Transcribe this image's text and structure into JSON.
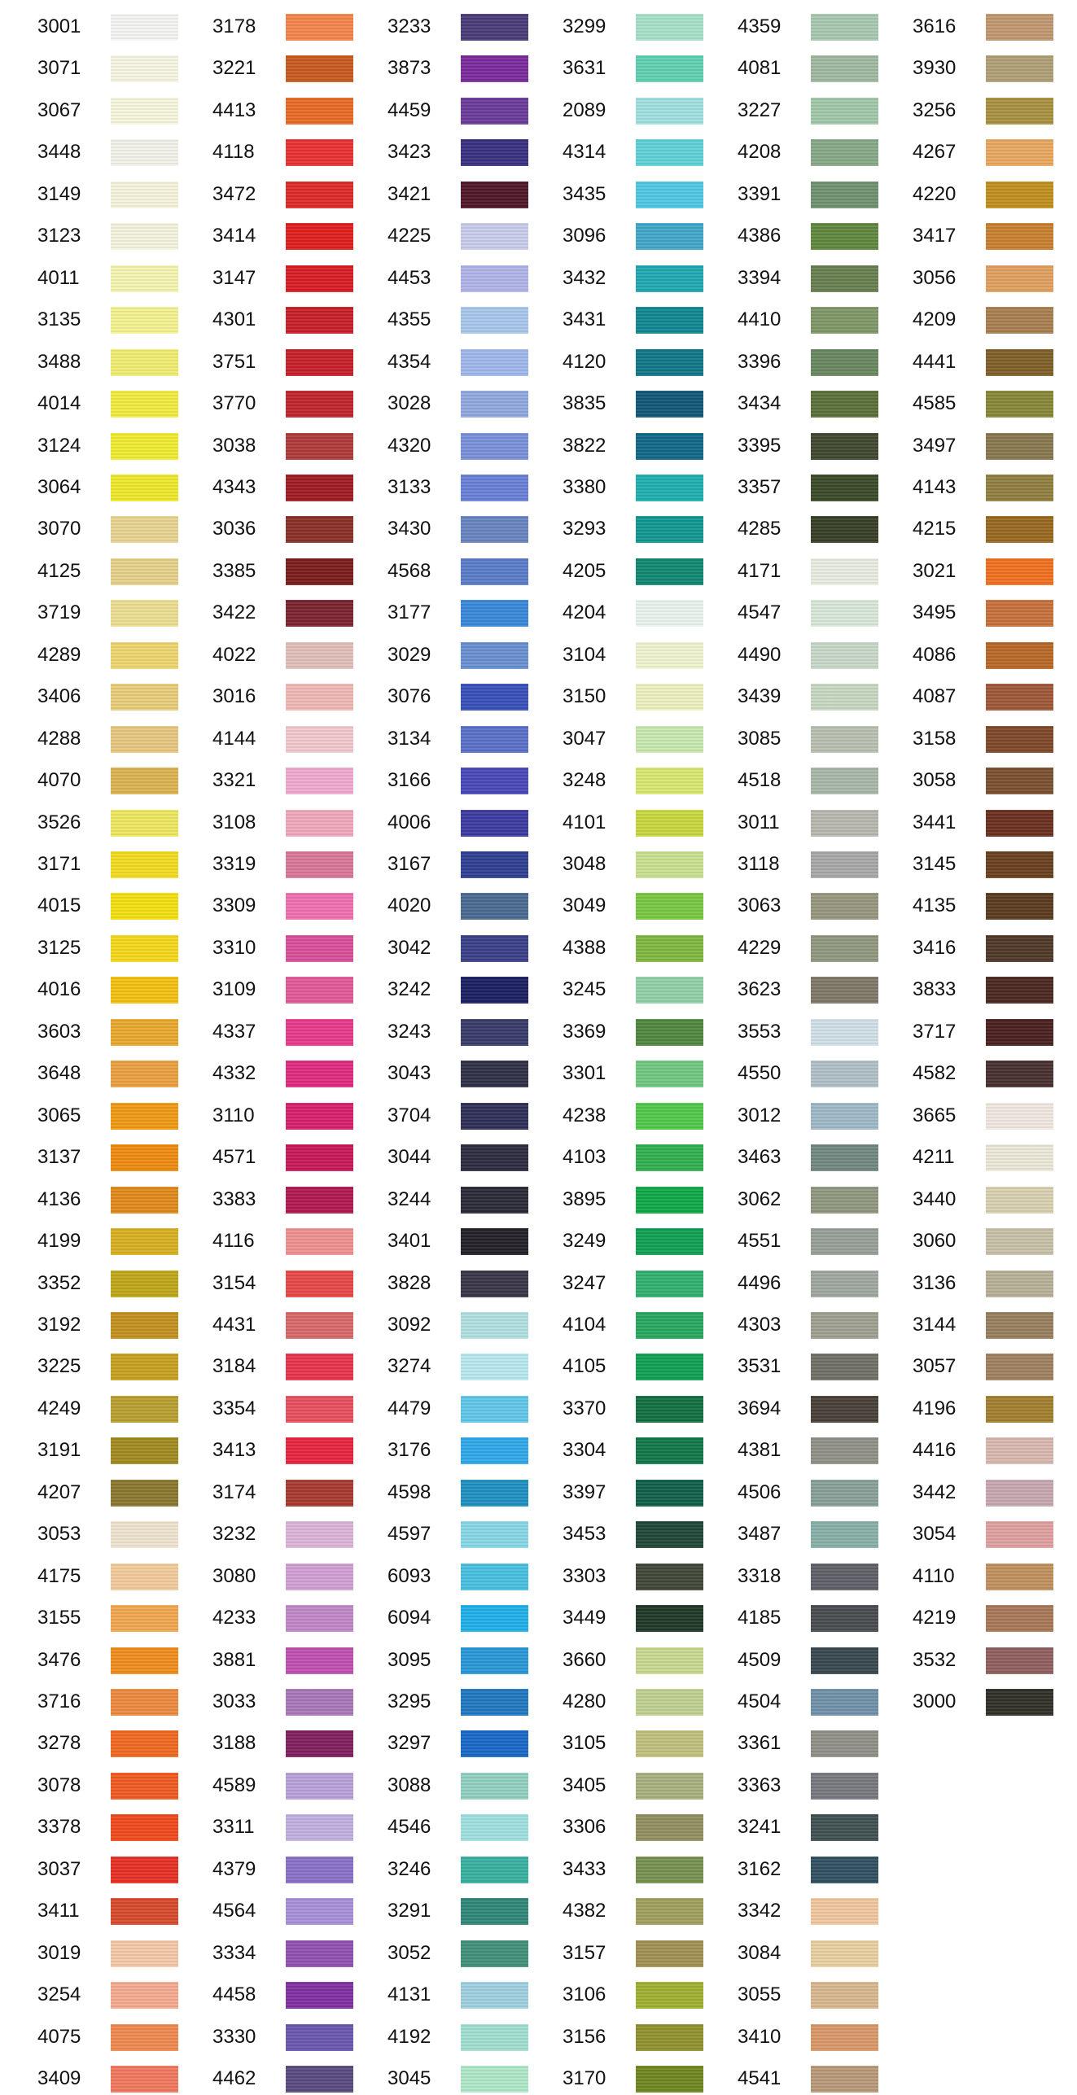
{
  "columns": [
    [
      {
        "code": "3001",
        "color": "#f4f4f2"
      },
      {
        "code": "3071",
        "color": "#f6f4e2"
      },
      {
        "code": "3067",
        "color": "#f7f5dc"
      },
      {
        "code": "3448",
        "color": "#f2f2ea"
      },
      {
        "code": "3149",
        "color": "#f5f3dc"
      },
      {
        "code": "3123",
        "color": "#f4f3de"
      },
      {
        "code": "4011",
        "color": "#f4f4b0"
      },
      {
        "code": "3135",
        "color": "#f3f290"
      },
      {
        "code": "3488",
        "color": "#f0ee70"
      },
      {
        "code": "4014",
        "color": "#f2ec40"
      },
      {
        "code": "3124",
        "color": "#f0ec30"
      },
      {
        "code": "3064",
        "color": "#efe82a"
      },
      {
        "code": "3070",
        "color": "#e7d490"
      },
      {
        "code": "4125",
        "color": "#e6d08a"
      },
      {
        "code": "3719",
        "color": "#ecde90"
      },
      {
        "code": "4289",
        "color": "#eed670"
      },
      {
        "code": "3406",
        "color": "#e8cc78"
      },
      {
        "code": "4288",
        "color": "#e8c880"
      },
      {
        "code": "4070",
        "color": "#dcb450"
      },
      {
        "code": "3526",
        "color": "#eee860"
      },
      {
        "code": "3171",
        "color": "#f2dc20"
      },
      {
        "code": "4015",
        "color": "#f3e010"
      },
      {
        "code": "3125",
        "color": "#f4d81a"
      },
      {
        "code": "4016",
        "color": "#f2c010"
      },
      {
        "code": "3603",
        "color": "#e8a82c"
      },
      {
        "code": "3648",
        "color": "#eba040"
      },
      {
        "code": "3065",
        "color": "#f09a14"
      },
      {
        "code": "3137",
        "color": "#ee8a10"
      },
      {
        "code": "4136",
        "color": "#e08a1c"
      },
      {
        "code": "4199",
        "color": "#d8b020"
      },
      {
        "code": "3352",
        "color": "#c0a818"
      },
      {
        "code": "3192",
        "color": "#c49020"
      },
      {
        "code": "3225",
        "color": "#c8a020"
      },
      {
        "code": "4249",
        "color": "#b8a030"
      },
      {
        "code": "3191",
        "color": "#a08a20"
      },
      {
        "code": "4207",
        "color": "#8a7830"
      },
      {
        "code": "3053",
        "color": "#f0e4d0"
      },
      {
        "code": "4175",
        "color": "#f2cc9c"
      },
      {
        "code": "3155",
        "color": "#f0a850"
      },
      {
        "code": "3476",
        "color": "#f08c1c"
      },
      {
        "code": "3716",
        "color": "#ec8a40"
      },
      {
        "code": "3278",
        "color": "#f06820"
      },
      {
        "code": "3078",
        "color": "#f05a20"
      },
      {
        "code": "3378",
        "color": "#f04a1c"
      },
      {
        "code": "3037",
        "color": "#e63024"
      },
      {
        "code": "3411",
        "color": "#d84a2c"
      },
      {
        "code": "3019",
        "color": "#f4c8a8"
      },
      {
        "code": "3254",
        "color": "#f4aa90"
      },
      {
        "code": "4075",
        "color": "#f08a50"
      },
      {
        "code": "3409",
        "color": "#f07860"
      }
    ],
    [
      {
        "code": "3178",
        "color": "#f4844a"
      },
      {
        "code": "3221",
        "color": "#c85a20"
      },
      {
        "code": "4413",
        "color": "#e86a24"
      },
      {
        "code": "4118",
        "color": "#e83232"
      },
      {
        "code": "3472",
        "color": "#e02828"
      },
      {
        "code": "3414",
        "color": "#e01e1e"
      },
      {
        "code": "3147",
        "color": "#d81c24"
      },
      {
        "code": "4301",
        "color": "#c81e28"
      },
      {
        "code": "3751",
        "color": "#c82028"
      },
      {
        "code": "3770",
        "color": "#c0242c"
      },
      {
        "code": "3038",
        "color": "#b03a3a"
      },
      {
        "code": "4343",
        "color": "#a01c24"
      },
      {
        "code": "3036",
        "color": "#8a3028"
      },
      {
        "code": "3385",
        "color": "#7a1c1c"
      },
      {
        "code": "3422",
        "color": "#7a2430"
      },
      {
        "code": "4022",
        "color": "#e0c0b8"
      },
      {
        "code": "3016",
        "color": "#f0b8b4"
      },
      {
        "code": "4144",
        "color": "#f0c8cc"
      },
      {
        "code": "3321",
        "color": "#f0aad0"
      },
      {
        "code": "3108",
        "color": "#f0a8bc"
      },
      {
        "code": "3319",
        "color": "#d87898"
      },
      {
        "code": "3309",
        "color": "#f070b0"
      },
      {
        "code": "3310",
        "color": "#d8509a"
      },
      {
        "code": "3109",
        "color": "#e05a98"
      },
      {
        "code": "4337",
        "color": "#e83a8c"
      },
      {
        "code": "4332",
        "color": "#e02a80"
      },
      {
        "code": "3110",
        "color": "#d8206c"
      },
      {
        "code": "4571",
        "color": "#c81858"
      },
      {
        "code": "3383",
        "color": "#b01850"
      },
      {
        "code": "4116",
        "color": "#f09090"
      },
      {
        "code": "3154",
        "color": "#e84848"
      },
      {
        "code": "4431",
        "color": "#d86868"
      },
      {
        "code": "3184",
        "color": "#e8344c"
      },
      {
        "code": "3354",
        "color": "#e85060"
      },
      {
        "code": "3413",
        "color": "#e82440"
      },
      {
        "code": "3174",
        "color": "#a83a30"
      },
      {
        "code": "3232",
        "color": "#dcb4d8"
      },
      {
        "code": "3080",
        "color": "#d0a0d4"
      },
      {
        "code": "4233",
        "color": "#c088c8"
      },
      {
        "code": "3881",
        "color": "#c050b0"
      },
      {
        "code": "3033",
        "color": "#a878b8"
      },
      {
        "code": "3188",
        "color": "#802060"
      },
      {
        "code": "4589",
        "color": "#b8a0d8"
      },
      {
        "code": "3311",
        "color": "#c0b0e0"
      },
      {
        "code": "4379",
        "color": "#8a70c8"
      },
      {
        "code": "4564",
        "color": "#a890d8"
      },
      {
        "code": "3334",
        "color": "#9050b0"
      },
      {
        "code": "4458",
        "color": "#8030a0"
      },
      {
        "code": "3330",
        "color": "#6a58b0"
      },
      {
        "code": "4462",
        "color": "#5a4a80"
      }
    ],
    [
      {
        "code": "3233",
        "color": "#4a3c78"
      },
      {
        "code": "3873",
        "color": "#7a2a9a"
      },
      {
        "code": "4459",
        "color": "#6a3a9a"
      },
      {
        "code": "3423",
        "color": "#383080"
      },
      {
        "code": "3421",
        "color": "#501828"
      },
      {
        "code": "4225",
        "color": "#c8ccea"
      },
      {
        "code": "4453",
        "color": "#b0b4e8"
      },
      {
        "code": "4355",
        "color": "#a8c8ec"
      },
      {
        "code": "4354",
        "color": "#a0b8ec"
      },
      {
        "code": "3028",
        "color": "#90a8e0"
      },
      {
        "code": "4320",
        "color": "#7890d8"
      },
      {
        "code": "3133",
        "color": "#6a80d8"
      },
      {
        "code": "3430",
        "color": "#6884c0"
      },
      {
        "code": "4568",
        "color": "#5a7cc8"
      },
      {
        "code": "3177",
        "color": "#3a88d8"
      },
      {
        "code": "3029",
        "color": "#6890d0"
      },
      {
        "code": "3076",
        "color": "#3850b8"
      },
      {
        "code": "3134",
        "color": "#5a70c8"
      },
      {
        "code": "3166",
        "color": "#4848b8"
      },
      {
        "code": "4006",
        "color": "#3c3ca0"
      },
      {
        "code": "3167",
        "color": "#304090"
      },
      {
        "code": "4020",
        "color": "#4a6a90"
      },
      {
        "code": "3042",
        "color": "#3a4088"
      },
      {
        "code": "3242",
        "color": "#1c2060"
      },
      {
        "code": "3243",
        "color": "#383c68"
      },
      {
        "code": "3043",
        "color": "#303048"
      },
      {
        "code": "3704",
        "color": "#303058"
      },
      {
        "code": "3044",
        "color": "#2c2c40"
      },
      {
        "code": "3244",
        "color": "#2a2a38"
      },
      {
        "code": "3401",
        "color": "#242028"
      },
      {
        "code": "3828",
        "color": "#3a3448"
      },
      {
        "code": "3092",
        "color": "#b0e0e0"
      },
      {
        "code": "3274",
        "color": "#b8e8f0"
      },
      {
        "code": "4479",
        "color": "#60c8e8"
      },
      {
        "code": "3176",
        "color": "#30a8e8"
      },
      {
        "code": "4598",
        "color": "#2090c0"
      },
      {
        "code": "4597",
        "color": "#88d8e8"
      },
      {
        "code": "6093",
        "color": "#48c0e0"
      },
      {
        "code": "6094",
        "color": "#20b0e8"
      },
      {
        "code": "3095",
        "color": "#2898d8"
      },
      {
        "code": "3295",
        "color": "#2078c0"
      },
      {
        "code": "3297",
        "color": "#1868c8"
      },
      {
        "code": "3088",
        "color": "#90d0c0"
      },
      {
        "code": "4546",
        "color": "#a0e0e0"
      },
      {
        "code": "3246",
        "color": "#38b0a0"
      },
      {
        "code": "3291",
        "color": "#308878"
      },
      {
        "code": "3052",
        "color": "#40907a"
      },
      {
        "code": "4131",
        "color": "#a0d0e0"
      },
      {
        "code": "4192",
        "color": "#a0e0d0"
      },
      {
        "code": "3045",
        "color": "#b0e8c8"
      }
    ],
    [
      {
        "code": "3299",
        "color": "#a8e0c8"
      },
      {
        "code": "3631",
        "color": "#60d0b0"
      },
      {
        "code": "2089",
        "color": "#a0e0e0"
      },
      {
        "code": "4314",
        "color": "#60d0d8"
      },
      {
        "code": "3435",
        "color": "#50c8e0"
      },
      {
        "code": "3096",
        "color": "#40a8c8"
      },
      {
        "code": "3432",
        "color": "#20a8b0"
      },
      {
        "code": "3431",
        "color": "#108890"
      },
      {
        "code": "4120",
        "color": "#107888"
      },
      {
        "code": "3835",
        "color": "#105878"
      },
      {
        "code": "3822",
        "color": "#106888"
      },
      {
        "code": "3380",
        "color": "#20b0b0"
      },
      {
        "code": "3293",
        "color": "#109890"
      },
      {
        "code": "4205",
        "color": "#108870"
      },
      {
        "code": "4204",
        "color": "#e8f4ee"
      },
      {
        "code": "3104",
        "color": "#f0f4d0"
      },
      {
        "code": "3150",
        "color": "#ecf0c0"
      },
      {
        "code": "3047",
        "color": "#c8e8b0"
      },
      {
        "code": "3248",
        "color": "#d8e870"
      },
      {
        "code": "4101",
        "color": "#c8d840"
      },
      {
        "code": "3048",
        "color": "#c8e090"
      },
      {
        "code": "3049",
        "color": "#78c840"
      },
      {
        "code": "4388",
        "color": "#80b840"
      },
      {
        "code": "3245",
        "color": "#90d0a8"
      },
      {
        "code": "3369",
        "color": "#508840"
      },
      {
        "code": "3301",
        "color": "#70c880"
      },
      {
        "code": "4238",
        "color": "#50c848"
      },
      {
        "code": "4103",
        "color": "#30b050"
      },
      {
        "code": "3895",
        "color": "#10a848"
      },
      {
        "code": "3249",
        "color": "#10a050"
      },
      {
        "code": "3247",
        "color": "#30b070"
      },
      {
        "code": "4104",
        "color": "#28a860"
      },
      {
        "code": "4105",
        "color": "#10a050"
      },
      {
        "code": "3370",
        "color": "#107040"
      },
      {
        "code": "3304",
        "color": "#107848"
      },
      {
        "code": "3397",
        "color": "#106048"
      },
      {
        "code": "3453",
        "color": "#204838"
      },
      {
        "code": "3303",
        "color": "#404838"
      },
      {
        "code": "3449",
        "color": "#203828"
      },
      {
        "code": "3660",
        "color": "#c8d890"
      },
      {
        "code": "4280",
        "color": "#c0d090"
      },
      {
        "code": "3105",
        "color": "#c0c080"
      },
      {
        "code": "3405",
        "color": "#a8b080"
      },
      {
        "code": "3306",
        "color": "#909060"
      },
      {
        "code": "3433",
        "color": "#789050"
      },
      {
        "code": "4382",
        "color": "#a0a060"
      },
      {
        "code": "3157",
        "color": "#a09050"
      },
      {
        "code": "3106",
        "color": "#a0b030"
      },
      {
        "code": "3156",
        "color": "#909030"
      },
      {
        "code": "3170",
        "color": "#708820"
      }
    ],
    [
      {
        "code": "4359",
        "color": "#a8c8b0"
      },
      {
        "code": "4081",
        "color": "#a0b8a0"
      },
      {
        "code": "3227",
        "color": "#a0c8a8"
      },
      {
        "code": "4208",
        "color": "#88a888"
      },
      {
        "code": "3391",
        "color": "#709070"
      },
      {
        "code": "4386",
        "color": "#608840"
      },
      {
        "code": "3394",
        "color": "#688050"
      },
      {
        "code": "4410",
        "color": "#809868"
      },
      {
        "code": "3396",
        "color": "#688860"
      },
      {
        "code": "3434",
        "color": "#5a7038"
      },
      {
        "code": "3395",
        "color": "#404830"
      },
      {
        "code": "3357",
        "color": "#3a4a28"
      },
      {
        "code": "4285",
        "color": "#384028"
      },
      {
        "code": "4171",
        "color": "#e8ece0"
      },
      {
        "code": "4547",
        "color": "#d8e8d8"
      },
      {
        "code": "4490",
        "color": "#c8d8c8"
      },
      {
        "code": "3439",
        "color": "#c8d8c0"
      },
      {
        "code": "3085",
        "color": "#b8c0b0"
      },
      {
        "code": "4518",
        "color": "#a8b8a8"
      },
      {
        "code": "3011",
        "color": "#b8b8b0"
      },
      {
        "code": "3118",
        "color": "#a8a8a8"
      },
      {
        "code": "3063",
        "color": "#989880"
      },
      {
        "code": "4229",
        "color": "#909880"
      },
      {
        "code": "3623",
        "color": "#807868"
      },
      {
        "code": "3553",
        "color": "#d0e0e8"
      },
      {
        "code": "4550",
        "color": "#b0c0c8"
      },
      {
        "code": "3012",
        "color": "#a0b8c8"
      },
      {
        "code": "3463",
        "color": "#708880"
      },
      {
        "code": "3062",
        "color": "#909880"
      },
      {
        "code": "4551",
        "color": "#98a098"
      },
      {
        "code": "4496",
        "color": "#a0a8a0"
      },
      {
        "code": "4303",
        "color": "#a0a090"
      },
      {
        "code": "3531",
        "color": "#707068"
      },
      {
        "code": "3694",
        "color": "#484038"
      },
      {
        "code": "4381",
        "color": "#909088"
      },
      {
        "code": "4506",
        "color": "#88a098"
      },
      {
        "code": "3487",
        "color": "#88b0a8"
      },
      {
        "code": "3318",
        "color": "#606068"
      },
      {
        "code": "4185",
        "color": "#484c50"
      },
      {
        "code": "4509",
        "color": "#384850"
      },
      {
        "code": "4504",
        "color": "#7090a8"
      },
      {
        "code": "3361",
        "color": "#909088"
      },
      {
        "code": "3363",
        "color": "#787880"
      },
      {
        "code": "3241",
        "color": "#405050"
      },
      {
        "code": "3162",
        "color": "#305060"
      },
      {
        "code": "3342",
        "color": "#f0c8a0"
      },
      {
        "code": "3084",
        "color": "#e8d0a0"
      },
      {
        "code": "3055",
        "color": "#d8b890"
      },
      {
        "code": "3410",
        "color": "#d89868"
      },
      {
        "code": "4541",
        "color": "#b89878"
      }
    ],
    [
      {
        "code": "3616",
        "color": "#c09870"
      },
      {
        "code": "3930",
        "color": "#b0a078"
      },
      {
        "code": "3256",
        "color": "#a89040"
      },
      {
        "code": "4267",
        "color": "#e8a860"
      },
      {
        "code": "4220",
        "color": "#c09020"
      },
      {
        "code": "3417",
        "color": "#c88030"
      },
      {
        "code": "3056",
        "color": "#e0a060"
      },
      {
        "code": "4209",
        "color": "#a88050"
      },
      {
        "code": "4441",
        "color": "#806028"
      },
      {
        "code": "4585",
        "color": "#888838"
      },
      {
        "code": "3497",
        "color": "#887850"
      },
      {
        "code": "4143",
        "color": "#908040"
      },
      {
        "code": "4215",
        "color": "#986820"
      },
      {
        "code": "3021",
        "color": "#f07020"
      },
      {
        "code": "3495",
        "color": "#c8703c"
      },
      {
        "code": "4086",
        "color": "#b86828"
      },
      {
        "code": "4087",
        "color": "#a05838"
      },
      {
        "code": "3158",
        "color": "#804828"
      },
      {
        "code": "3058",
        "color": "#7a5030"
      },
      {
        "code": "3441",
        "color": "#6a3020"
      },
      {
        "code": "3145",
        "color": "#6a4020"
      },
      {
        "code": "4135",
        "color": "#5a3c20"
      },
      {
        "code": "3416",
        "color": "#503828"
      },
      {
        "code": "3833",
        "color": "#4a2820"
      },
      {
        "code": "3717",
        "color": "#4a2020"
      },
      {
        "code": "4582",
        "color": "#483030"
      },
      {
        "code": "3665",
        "color": "#f0e8e0"
      },
      {
        "code": "4211",
        "color": "#ece8d8"
      },
      {
        "code": "3440",
        "color": "#d8d0b0"
      },
      {
        "code": "3060",
        "color": "#c8c0a8"
      },
      {
        "code": "3136",
        "color": "#b8b098"
      },
      {
        "code": "3144",
        "color": "#988060"
      },
      {
        "code": "3057",
        "color": "#a08060"
      },
      {
        "code": "4196",
        "color": "#a08030"
      },
      {
        "code": "4416",
        "color": "#d8b8b0"
      },
      {
        "code": "3442",
        "color": "#c8a8b0"
      },
      {
        "code": "3054",
        "color": "#e0a0a0"
      },
      {
        "code": "4110",
        "color": "#c09060"
      },
      {
        "code": "4219",
        "color": "#a87858"
      },
      {
        "code": "3532",
        "color": "#906060"
      },
      {
        "code": "3000",
        "color": "#303028"
      }
    ]
  ]
}
